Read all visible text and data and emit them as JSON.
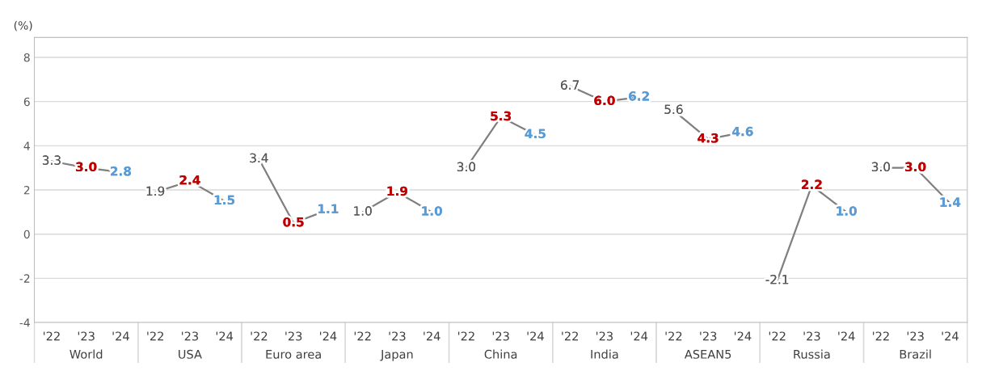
{
  "chart_data": {
    "type": "line",
    "ylabel": "(%)",
    "categories": [
      "'22",
      "'23",
      "'24",
      "'22",
      "'23",
      "'24",
      "'22",
      "'23",
      "'24",
      "'22",
      "'23",
      "'24",
      "'22",
      "'23",
      "'24",
      "'22",
      "'23",
      "'24",
      "'22",
      "'23",
      "'24",
      "'22",
      "'23",
      "'24",
      "'22",
      "'23",
      "'24"
    ],
    "series": [
      {
        "color": "#7f7f7f",
        "values": [
          3.3,
          3.0,
          2.8,
          null,
          null,
          null,
          null,
          null,
          null,
          null,
          null,
          null,
          null,
          null,
          null,
          null,
          null,
          null,
          null,
          null,
          null,
          null,
          null,
          null,
          null,
          null,
          null
        ],
        "value_labels": [
          "3.3",
          "3.0",
          "2.8",
          null,
          null,
          null,
          null,
          null,
          null,
          null,
          null,
          null,
          null,
          null,
          null,
          null,
          null,
          null,
          null,
          null,
          null,
          null,
          null,
          null,
          null,
          null,
          null
        ],
        "colors": [
          "#595959",
          "#c00000",
          "#5b9bd5",
          null,
          null,
          null,
          null,
          null,
          null,
          null,
          null,
          null,
          null,
          null,
          null,
          null,
          null,
          null,
          null,
          null,
          null,
          null,
          null,
          null,
          null,
          null,
          null
        ]
      },
      {
        "color": "#7f7f7f",
        "values": [
          null,
          null,
          null,
          1.9,
          2.4,
          1.5,
          null,
          null,
          null,
          null,
          null,
          null,
          null,
          null,
          null,
          null,
          null,
          null,
          null,
          null,
          null,
          null,
          null,
          null,
          null,
          null,
          null
        ],
        "value_labels": [
          null,
          null,
          null,
          "1.9",
          "2.4",
          "1.5",
          null,
          null,
          null,
          null,
          null,
          null,
          null,
          null,
          null,
          null,
          null,
          null,
          null,
          null,
          null,
          null,
          null,
          null,
          null,
          null,
          null
        ],
        "colors": [
          null,
          null,
          null,
          "#595959",
          "#c00000",
          "#5b9bd5",
          null,
          null,
          null,
          null,
          null,
          null,
          null,
          null,
          null,
          null,
          null,
          null,
          null,
          null,
          null,
          null,
          null,
          null,
          null,
          null,
          null
        ]
      },
      {
        "color": "#7f7f7f",
        "values": [
          null,
          null,
          null,
          null,
          null,
          null,
          3.4,
          0.5,
          1.1,
          null,
          null,
          null,
          null,
          null,
          null,
          null,
          null,
          null,
          null,
          null,
          null,
          null,
          null,
          null,
          null,
          null,
          null
        ],
        "value_labels": [
          null,
          null,
          null,
          null,
          null,
          null,
          "3.4",
          "0.5",
          "1.1",
          null,
          null,
          null,
          null,
          null,
          null,
          null,
          null,
          null,
          null,
          null,
          null,
          null,
          null,
          null,
          null,
          null,
          null
        ],
        "colors": [
          null,
          null,
          null,
          null,
          null,
          null,
          "#595959",
          "#c00000",
          "#5b9bd5",
          null,
          null,
          null,
          null,
          null,
          null,
          null,
          null,
          null,
          null,
          null,
          null,
          null,
          null,
          null,
          null,
          null,
          null
        ]
      },
      {
        "color": "#7f7f7f",
        "values": [
          null,
          null,
          null,
          null,
          null,
          null,
          null,
          null,
          null,
          1.0,
          1.9,
          1.0,
          null,
          null,
          null,
          null,
          null,
          null,
          null,
          null,
          null,
          null,
          null,
          null,
          null,
          null,
          null
        ],
        "value_labels": [
          null,
          null,
          null,
          null,
          null,
          null,
          null,
          null,
          null,
          "1.0",
          "1.9",
          "1.0",
          null,
          null,
          null,
          null,
          null,
          null,
          null,
          null,
          null,
          null,
          null,
          null,
          null,
          null,
          null
        ],
        "colors": [
          null,
          null,
          null,
          null,
          null,
          null,
          null,
          null,
          null,
          "#595959",
          "#c00000",
          "#5b9bd5",
          null,
          null,
          null,
          null,
          null,
          null,
          null,
          null,
          null,
          null,
          null,
          null,
          null,
          null,
          null
        ]
      },
      {
        "color": "#7f7f7f",
        "values": [
          null,
          null,
          null,
          null,
          null,
          null,
          null,
          null,
          null,
          null,
          null,
          null,
          3.0,
          5.3,
          4.5,
          null,
          null,
          null,
          null,
          null,
          null,
          null,
          null,
          null,
          null,
          null,
          null
        ],
        "value_labels": [
          null,
          null,
          null,
          null,
          null,
          null,
          null,
          null,
          null,
          null,
          null,
          null,
          "3.0",
          "5.3",
          "4.5",
          null,
          null,
          null,
          null,
          null,
          null,
          null,
          null,
          null,
          null,
          null,
          null
        ],
        "colors": [
          null,
          null,
          null,
          null,
          null,
          null,
          null,
          null,
          null,
          null,
          null,
          null,
          "#595959",
          "#c00000",
          "#5b9bd5",
          null,
          null,
          null,
          null,
          null,
          null,
          null,
          null,
          null,
          null,
          null,
          null
        ]
      },
      {
        "color": "#7f7f7f",
        "values": [
          null,
          null,
          null,
          null,
          null,
          null,
          null,
          null,
          null,
          null,
          null,
          null,
          null,
          null,
          null,
          6.7,
          6.0,
          6.2,
          null,
          null,
          null,
          null,
          null,
          null,
          null,
          null,
          null
        ],
        "value_labels": [
          null,
          null,
          null,
          null,
          null,
          null,
          null,
          null,
          null,
          null,
          null,
          null,
          null,
          null,
          null,
          "6.7",
          "6.0",
          "6.2",
          null,
          null,
          null,
          null,
          null,
          null,
          null,
          null,
          null
        ],
        "colors": [
          null,
          null,
          null,
          null,
          null,
          null,
          null,
          null,
          null,
          null,
          null,
          null,
          null,
          null,
          null,
          "#595959",
          "#c00000",
          "#5b9bd5",
          null,
          null,
          null,
          null,
          null,
          null,
          null,
          null,
          null
        ]
      },
      {
        "color": "#7f7f7f",
        "values": [
          null,
          null,
          null,
          null,
          null,
          null,
          null,
          null,
          null,
          null,
          null,
          null,
          null,
          null,
          null,
          null,
          null,
          null,
          5.6,
          4.3,
          4.6,
          null,
          null,
          null,
          null,
          null,
          null
        ],
        "value_labels": [
          null,
          null,
          null,
          null,
          null,
          null,
          null,
          null,
          null,
          null,
          null,
          null,
          null,
          null,
          null,
          null,
          null,
          null,
          "5.6",
          "4.3",
          "4.6",
          null,
          null,
          null,
          null,
          null,
          null
        ],
        "colors": [
          null,
          null,
          null,
          null,
          null,
          null,
          null,
          null,
          null,
          null,
          null,
          null,
          null,
          null,
          null,
          null,
          null,
          null,
          "#595959",
          "#c00000",
          "#5b9bd5",
          null,
          null,
          null,
          null,
          null,
          null
        ]
      },
      {
        "color": "#7f7f7f",
        "values": [
          null,
          null,
          null,
          null,
          null,
          null,
          null,
          null,
          null,
          null,
          null,
          null,
          null,
          null,
          null,
          null,
          null,
          null,
          null,
          null,
          null,
          -2.1,
          2.2,
          1.0,
          null,
          null,
          null
        ],
        "value_labels": [
          null,
          null,
          null,
          null,
          null,
          null,
          null,
          null,
          null,
          null,
          null,
          null,
          null,
          null,
          null,
          null,
          null,
          null,
          null,
          null,
          null,
          "-2.1",
          "2.2",
          "1.0",
          null,
          null,
          null
        ],
        "colors": [
          null,
          null,
          null,
          null,
          null,
          null,
          null,
          null,
          null,
          null,
          null,
          null,
          null,
          null,
          null,
          null,
          null,
          null,
          null,
          null,
          null,
          "#595959",
          "#c00000",
          "#5b9bd5",
          null,
          null,
          null
        ]
      },
      {
        "color": "#7f7f7f",
        "values": [
          null,
          null,
          null,
          null,
          null,
          null,
          null,
          null,
          null,
          null,
          null,
          null,
          null,
          null,
          null,
          null,
          null,
          null,
          null,
          null,
          null,
          null,
          null,
          null,
          3.0,
          3.0,
          1.4
        ],
        "value_labels": [
          null,
          null,
          null,
          null,
          null,
          null,
          null,
          null,
          null,
          null,
          null,
          null,
          null,
          null,
          null,
          null,
          null,
          null,
          null,
          null,
          null,
          null,
          null,
          null,
          "3.0",
          "3.0",
          "1.4"
        ],
        "colors": [
          null,
          null,
          null,
          null,
          null,
          null,
          null,
          null,
          null,
          null,
          null,
          null,
          null,
          null,
          null,
          null,
          null,
          null,
          null,
          null,
          null,
          null,
          null,
          null,
          "#595959",
          "#c00000",
          "#5b9bd5"
        ]
      }
    ],
    "ylim": [
      -4,
      8.9
    ],
    "yticks": [
      {
        "value": -4,
        "label": "-4"
      },
      {
        "value": -2,
        "label": "-2"
      },
      0,
      2,
      4,
      6,
      8
    ],
    "grid": "y",
    "line_style": "solid",
    "marker": "none",
    "legend": false,
    "annotations": [
      "World",
      "USA",
      "Euro area",
      "Japan",
      "China",
      "India",
      "ASEAN5",
      "Russia",
      "Brazil"
    ]
  }
}
